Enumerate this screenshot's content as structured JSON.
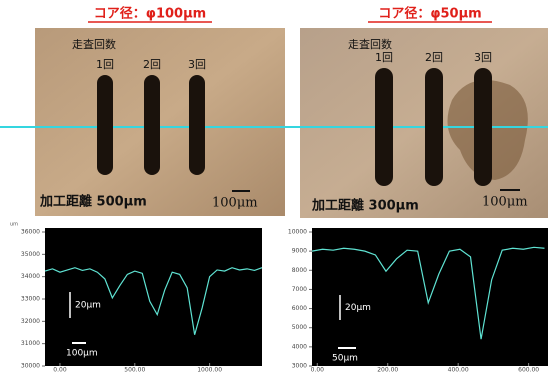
{
  "panels": [
    {
      "title": "コア径：φ100μm",
      "scan_label": "走査回数",
      "passes": [
        "1回",
        "2回",
        "3回"
      ],
      "distance": "加工距離 500μm",
      "scale": "100μm"
    },
    {
      "title": "コア径：φ50μm",
      "scan_label": "走査回数",
      "passes": [
        "1回",
        "2回",
        "3回"
      ],
      "distance": "加工距離 300μm",
      "scale": "100μm"
    }
  ],
  "chart_data": [
    {
      "type": "line",
      "y_label": "um",
      "color": "#5fe3d3",
      "x": [
        -100,
        -50,
        0,
        50,
        100,
        150,
        200,
        250,
        300,
        350,
        400,
        450,
        500,
        550,
        600,
        650,
        700,
        750,
        800,
        850,
        900,
        950,
        1000,
        1050,
        1100,
        1150,
        1200,
        1250,
        1300,
        1350
      ],
      "values": [
        34250,
        34350,
        34200,
        34300,
        34400,
        34280,
        34350,
        34200,
        33900,
        33050,
        33600,
        34100,
        34250,
        34150,
        32900,
        32300,
        33400,
        34200,
        34100,
        33500,
        31400,
        32600,
        34000,
        34300,
        34250,
        34400,
        34300,
        34350,
        34280,
        34400
      ],
      "xlim": [
        -100,
        1350
      ],
      "ylim": [
        30000,
        36000
      ],
      "xticks": [
        {
          "value": 0,
          "label": "0.00"
        },
        {
          "value": 500,
          "label": "500.00"
        },
        {
          "value": 1000,
          "label": "1000.00"
        }
      ],
      "yticks": [
        30000,
        31000,
        32000,
        33000,
        34000,
        35000,
        36000
      ],
      "annotations": [
        "20μm",
        "100μm"
      ]
    },
    {
      "type": "line",
      "color": "#5fe3d3",
      "x": [
        -15,
        15,
        45,
        75,
        105,
        135,
        165,
        195,
        225,
        255,
        285,
        315,
        345,
        375,
        405,
        435,
        465,
        495,
        525,
        555,
        585,
        615,
        645
      ],
      "values": [
        9000,
        9100,
        9050,
        9150,
        9100,
        9000,
        8800,
        7950,
        8600,
        9050,
        9000,
        6300,
        7800,
        9000,
        9100,
        8700,
        4400,
        7500,
        9050,
        9150,
        9100,
        9200,
        9150
      ],
      "xlim": [
        -15,
        655
      ],
      "ylim": [
        3000,
        10000
      ],
      "xticks": [
        {
          "value": 0,
          "label": "0.00"
        },
        {
          "value": 200,
          "label": "200.00"
        },
        {
          "value": 400,
          "label": "400.00"
        },
        {
          "value": 600,
          "label": "600.00"
        }
      ],
      "yticks": [
        3000,
        4000,
        5000,
        6000,
        7000,
        8000,
        9000,
        10000
      ],
      "annotations": [
        "20μm",
        "50μm"
      ]
    }
  ]
}
